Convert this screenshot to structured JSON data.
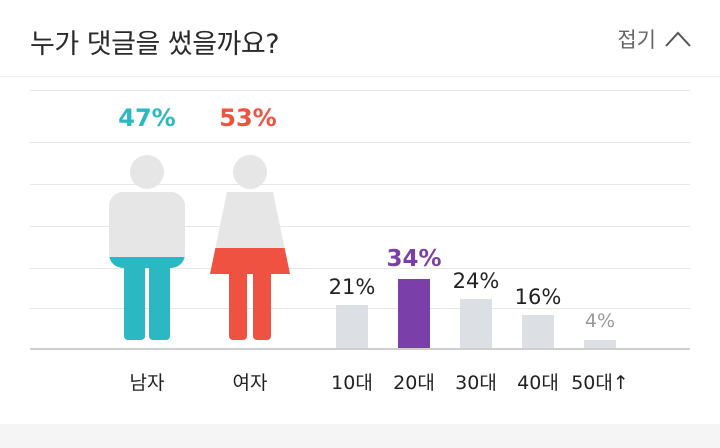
{
  "header": {
    "title": "누가 댓글을 썼을까요?",
    "collapse_label": "접기"
  },
  "icons": {
    "collapse": "chevron-up-icon",
    "male": "male-figure-icon",
    "female": "female-figure-icon"
  },
  "colors": {
    "male": "#2bb8c3",
    "female": "#ef5240",
    "highlight": "#7b3fa9",
    "bar": "#dcdfe4",
    "figure_gray": "#e6e6e6",
    "faded": "#999999"
  },
  "chart_data": [
    {
      "type": "bar",
      "categories": [
        "남자",
        "여자"
      ],
      "values": [
        47,
        53
      ],
      "labels": [
        "47%",
        "53%"
      ]
    },
    {
      "type": "bar",
      "categories": [
        "10대",
        "20대",
        "30대",
        "40대",
        "50대↑"
      ],
      "values": [
        21,
        34,
        24,
        16,
        4
      ],
      "labels": [
        "21%",
        "34%",
        "24%",
        "16%",
        "4%"
      ],
      "highlight": "20대"
    }
  ]
}
